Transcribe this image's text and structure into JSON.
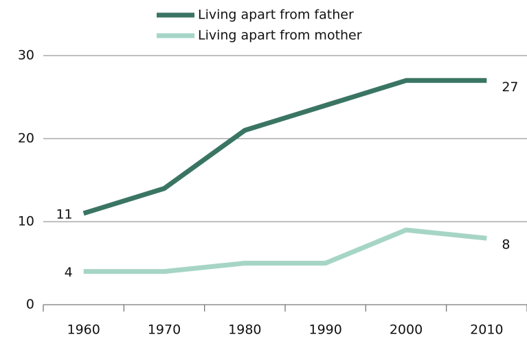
{
  "chart_data": {
    "type": "line",
    "categories": [
      "1960",
      "1970",
      "1980",
      "1990",
      "2000",
      "2010"
    ],
    "series": [
      {
        "name": "Living apart from father",
        "color": "#3a7563",
        "values": [
          11,
          14,
          21,
          24,
          27,
          27
        ]
      },
      {
        "name": "Living apart from mother",
        "color": "#a6d5c6",
        "values": [
          4,
          4,
          5,
          5,
          9,
          8
        ]
      }
    ],
    "ylim": [
      0,
      30
    ],
    "yticks": [
      0,
      10,
      20,
      30
    ],
    "grid": true,
    "legend": "top"
  }
}
